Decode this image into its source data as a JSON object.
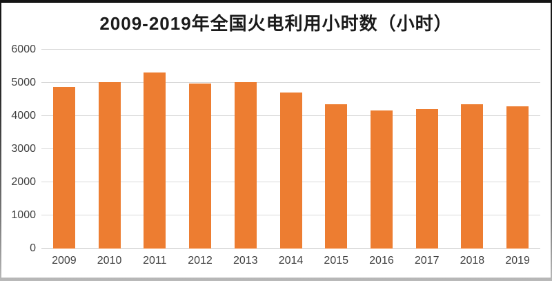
{
  "frame": {
    "background": "#FFFFFF",
    "border_top_color": "#141414",
    "border_bottom_color": "#B9B9B9"
  },
  "chart_data": {
    "type": "bar",
    "title": "2009-2019年全国火电利用小时数（小时）",
    "categories": [
      "2009",
      "2010",
      "2011",
      "2012",
      "2013",
      "2014",
      "2015",
      "2016",
      "2017",
      "2018",
      "2019"
    ],
    "values": [
      4865,
      5031,
      5305,
      4982,
      5021,
      4706,
      4364,
      4165,
      4209,
      4361,
      4293
    ],
    "xlabel": "",
    "ylabel": "",
    "ylim": [
      0,
      6000
    ],
    "yticks": [
      0,
      1000,
      2000,
      3000,
      4000,
      5000,
      6000
    ],
    "grid": true,
    "legend": "none",
    "bar_color": "#ED7D31",
    "gridline_color": "#D9D9D9",
    "baseline_color": "#C6C6C6",
    "tick_label_color": "#404040",
    "title_color": "#1A1A1A"
  }
}
